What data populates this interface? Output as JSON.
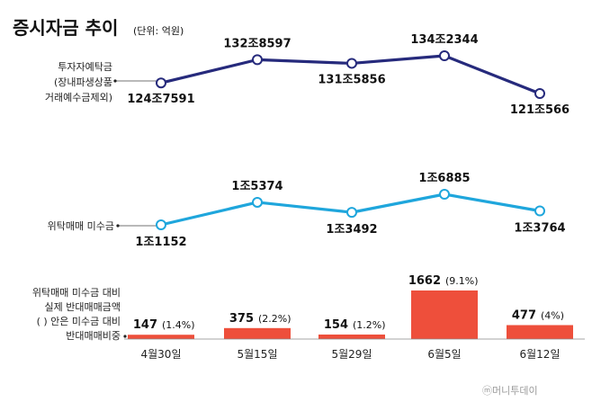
{
  "title": "증시자금 추이",
  "unit": "(단위: 억원)",
  "brand": "ⓜ머니투데이",
  "chart_data": [
    {
      "type": "line",
      "name_lines": [
        "투자자예탁금",
        "(장내파생상품",
        "거래예수금제외)"
      ],
      "categories": [
        "4월30일",
        "5월15일",
        "5월29일",
        "6월5일",
        "6월12일"
      ],
      "values": [
        1247591,
        1328597,
        1315856,
        1342344,
        1210566
      ],
      "labels": [
        "124조7591",
        "132조8597",
        "131조5856",
        "134조2344",
        "121조566"
      ],
      "color": "#262a7c"
    },
    {
      "type": "line",
      "name_lines": [
        "위탁매매 미수금"
      ],
      "categories": [
        "4월30일",
        "5월15일",
        "5월29일",
        "6월5일",
        "6월12일"
      ],
      "values": [
        11152,
        15374,
        13492,
        16885,
        13764
      ],
      "labels": [
        "1조1152",
        "1조5374",
        "1조3492",
        "1조6885",
        "1조3764"
      ],
      "color": "#1fa6dc"
    },
    {
      "type": "bar",
      "name_lines": [
        "위탁매매 미수금 대비",
        "실제 반대매매금액",
        "( ) 안은 미수금 대비",
        "반대매매비중"
      ],
      "categories": [
        "4월30일",
        "5월15일",
        "5월29일",
        "6월5일",
        "6월12일"
      ],
      "values": [
        147,
        375,
        154,
        1662,
        477
      ],
      "labels": [
        "147",
        "375",
        "154",
        "1662",
        "477"
      ],
      "pct_labels": [
        "(1.4%)",
        "(2.2%)",
        "(1.2%)",
        "(9.1%)",
        "(4%)"
      ],
      "color": "#ee4f3b"
    }
  ]
}
